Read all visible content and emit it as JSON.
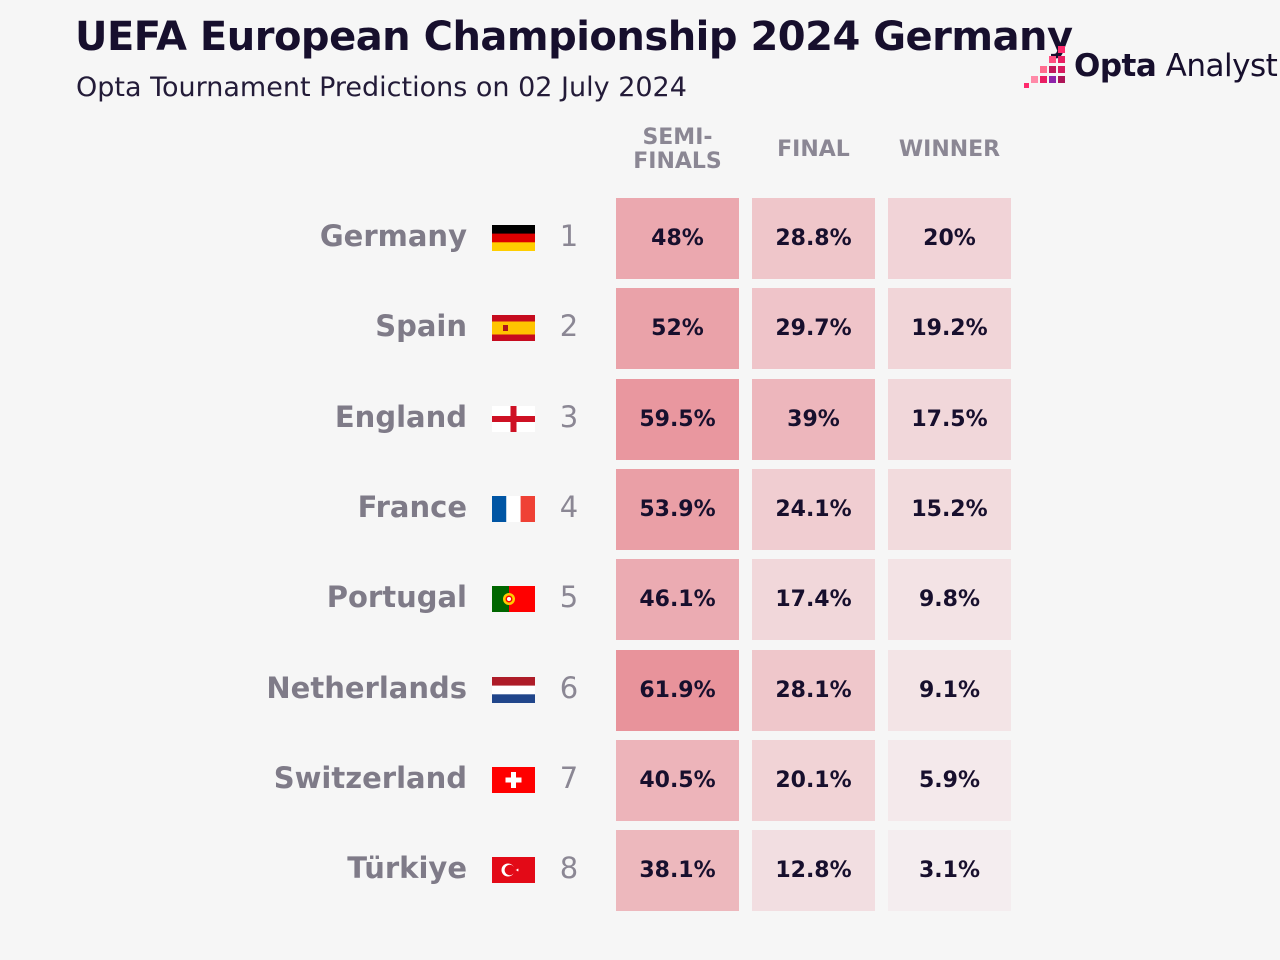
{
  "header": {
    "title": "UEFA European Championship 2024 Germany",
    "subtitle": "Opta Tournament Predictions on 02 July 2024"
  },
  "logo": {
    "bold": "Opta",
    "light": " Analyst",
    "icon": "opta-bars-icon",
    "colors": [
      "#ff2a6d",
      "#c2185b",
      "#6a1b9a"
    ]
  },
  "chart_data": {
    "type": "table",
    "columns": [
      "SEMI-\nFINALS",
      "FINAL",
      "WINNER"
    ],
    "rows": [
      {
        "country": "Germany",
        "rank": "1",
        "flag": "germany-flag-icon",
        "values": [
          "48%",
          "28.8%",
          "20%"
        ],
        "numeric": [
          48,
          28.8,
          20
        ]
      },
      {
        "country": "Spain",
        "rank": "2",
        "flag": "spain-flag-icon",
        "values": [
          "52%",
          "29.7%",
          "19.2%"
        ],
        "numeric": [
          52,
          29.7,
          19.2
        ]
      },
      {
        "country": "England",
        "rank": "3",
        "flag": "england-flag-icon",
        "values": [
          "59.5%",
          "39%",
          "17.5%"
        ],
        "numeric": [
          59.5,
          39,
          17.5
        ]
      },
      {
        "country": "France",
        "rank": "4",
        "flag": "france-flag-icon",
        "values": [
          "53.9%",
          "24.1%",
          "15.2%"
        ],
        "numeric": [
          53.9,
          24.1,
          15.2
        ]
      },
      {
        "country": "Portugal",
        "rank": "5",
        "flag": "portugal-flag-icon",
        "values": [
          "46.1%",
          "17.4%",
          "9.8%"
        ],
        "numeric": [
          46.1,
          17.4,
          9.8
        ]
      },
      {
        "country": "Netherlands",
        "rank": "6",
        "flag": "netherlands-flag-icon",
        "values": [
          "61.9%",
          "28.1%",
          "9.1%"
        ],
        "numeric": [
          61.9,
          28.1,
          9.1
        ]
      },
      {
        "country": "Switzerland",
        "rank": "7",
        "flag": "switzerland-flag-icon",
        "values": [
          "40.5%",
          "20.1%",
          "5.9%"
        ],
        "numeric": [
          40.5,
          20.1,
          5.9
        ]
      },
      {
        "country": "Türkiye",
        "rank": "8",
        "flag": "turkiye-flag-icon",
        "values": [
          "38.1%",
          "12.8%",
          "3.1%"
        ],
        "numeric": [
          38.1,
          12.8,
          3.1
        ]
      }
    ],
    "color_scale": {
      "low": "#f5f2f3",
      "high": "#e8939b"
    }
  }
}
